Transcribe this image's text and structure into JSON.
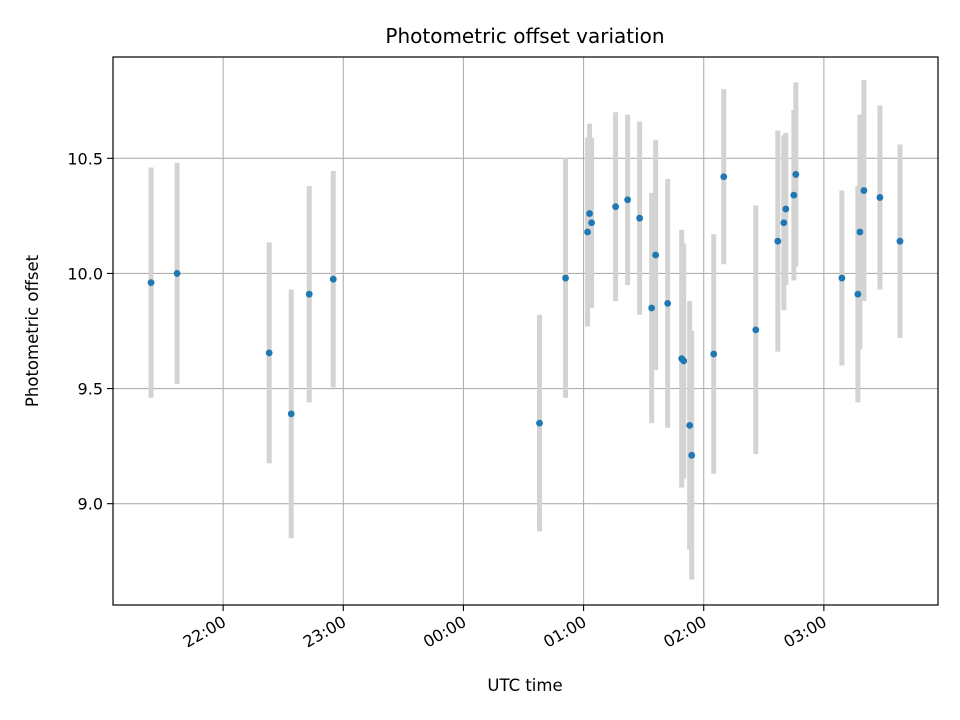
{
  "chart_data": {
    "type": "scatter",
    "title": "Photometric offset variation",
    "xlabel": "UTC time",
    "ylabel": "Photometric offset",
    "grid": true,
    "legend": "none",
    "colors": {
      "point": "#1f77b4",
      "errorbar": "#d3d3d3",
      "grid": "#b0b0b0"
    },
    "xlim": [
      "21:05",
      "03:57"
    ],
    "ylim": [
      8.56,
      10.94
    ],
    "x_ticks": [
      "22:00",
      "23:00",
      "00:00",
      "01:00",
      "02:00",
      "03:00"
    ],
    "y_ticks": [
      "9.0",
      "9.5",
      "10.0",
      "10.5"
    ],
    "series": [
      {
        "points": [
          {
            "x": "21:24",
            "y": 9.96,
            "yerr": 0.5
          },
          {
            "x": "21:37",
            "y": 10.0,
            "yerr": 0.48
          },
          {
            "x": "22:23",
            "y": 9.655,
            "yerr": 0.48
          },
          {
            "x": "22:34",
            "y": 9.39,
            "yerr": 0.54
          },
          {
            "x": "22:43",
            "y": 9.91,
            "yerr": 0.47
          },
          {
            "x": "22:55",
            "y": 9.975,
            "yerr": 0.47
          },
          {
            "x": "00:38",
            "y": 9.35,
            "yerr": 0.47
          },
          {
            "x": "00:51",
            "y": 9.98,
            "yerr": 0.52
          },
          {
            "x": "01:02",
            "y": 10.18,
            "yerr": 0.41
          },
          {
            "x": "01:03",
            "y": 10.26,
            "yerr": 0.39
          },
          {
            "x": "01:04",
            "y": 10.22,
            "yerr": 0.37
          },
          {
            "x": "01:16",
            "y": 10.29,
            "yerr": 0.41
          },
          {
            "x": "01:22",
            "y": 10.32,
            "yerr": 0.37
          },
          {
            "x": "01:28",
            "y": 10.24,
            "yerr": 0.42
          },
          {
            "x": "01:34",
            "y": 9.85,
            "yerr": 0.5
          },
          {
            "x": "01:36",
            "y": 10.08,
            "yerr": 0.5
          },
          {
            "x": "01:42",
            "y": 9.87,
            "yerr": 0.54
          },
          {
            "x": "01:49",
            "y": 9.63,
            "yerr": 0.56
          },
          {
            "x": "01:50",
            "y": 9.62,
            "yerr": 0.51
          },
          {
            "x": "01:53",
            "y": 9.34,
            "yerr": 0.54
          },
          {
            "x": "01:54",
            "y": 9.21,
            "yerr": 0.54
          },
          {
            "x": "02:05",
            "y": 9.65,
            "yerr": 0.52
          },
          {
            "x": "02:10",
            "y": 10.42,
            "yerr": 0.38
          },
          {
            "x": "02:26",
            "y": 9.755,
            "yerr": 0.54
          },
          {
            "x": "02:37",
            "y": 10.14,
            "yerr": 0.48
          },
          {
            "x": "02:40",
            "y": 10.22,
            "yerr": 0.38
          },
          {
            "x": "02:41",
            "y": 10.28,
            "yerr": 0.33
          },
          {
            "x": "02:45",
            "y": 10.34,
            "yerr": 0.37
          },
          {
            "x": "02:46",
            "y": 10.43,
            "yerr": 0.4
          },
          {
            "x": "03:09",
            "y": 9.98,
            "yerr": 0.38
          },
          {
            "x": "03:17",
            "y": 9.91,
            "yerr": 0.47
          },
          {
            "x": "03:18",
            "y": 10.18,
            "yerr": 0.51
          },
          {
            "x": "03:20",
            "y": 10.36,
            "yerr": 0.48
          },
          {
            "x": "03:28",
            "y": 10.33,
            "yerr": 0.4
          },
          {
            "x": "03:38",
            "y": 10.14,
            "yerr": 0.42
          }
        ]
      }
    ]
  }
}
